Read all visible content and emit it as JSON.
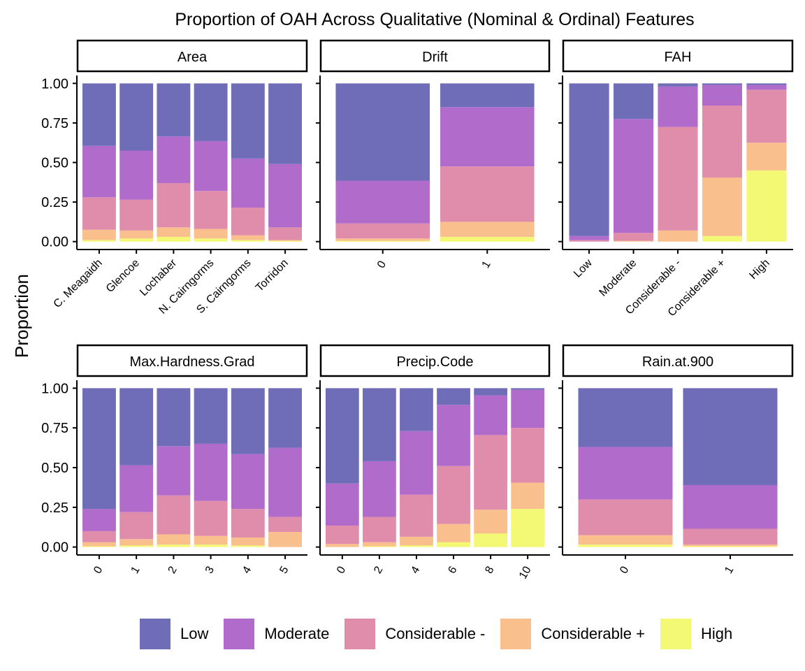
{
  "chart_data": {
    "type": "bar",
    "stacked": true,
    "title": "Proportion of OAH Across Qualitative (Nominal & Ordinal) Features",
    "ylabel": "Proportion",
    "ylim": [
      0,
      1
    ],
    "yticks": [
      "0.00",
      "0.25",
      "0.50",
      "0.75",
      "1.00"
    ],
    "legend_position": "bottom",
    "levels": [
      "Low",
      "Moderate",
      "Considerable -",
      "Considerable +",
      "High"
    ],
    "colors": {
      "Low": "#6f6db7",
      "Moderate": "#b16bcb",
      "Considerable -": "#e08dab",
      "Considerable +": "#f9bf8d",
      "High": "#f3f875"
    },
    "panels": [
      {
        "name": "Area",
        "categories": [
          "C. Meagaidh",
          "Glencoe",
          "Lochaber",
          "N. Cairngorms",
          "S. Cairngorms",
          "Torridon"
        ],
        "tick_rotation": 45,
        "series": [
          {
            "name": "High",
            "values": [
              0.01,
              0.02,
              0.03,
              0.02,
              0.01,
              0.005
            ]
          },
          {
            "name": "Considerable +",
            "values": [
              0.065,
              0.05,
              0.06,
              0.06,
              0.03,
              0.005
            ]
          },
          {
            "name": "Considerable -",
            "values": [
              0.205,
              0.195,
              0.28,
              0.24,
              0.175,
              0.08
            ]
          },
          {
            "name": "Moderate",
            "values": [
              0.325,
              0.31,
              0.295,
              0.315,
              0.31,
              0.4
            ]
          },
          {
            "name": "Low",
            "values": [
              0.395,
              0.425,
              0.335,
              0.365,
              0.475,
              0.51
            ]
          }
        ]
      },
      {
        "name": "Drift",
        "categories": [
          "0",
          "1"
        ],
        "tick_rotation": 60,
        "series": [
          {
            "name": "High",
            "values": [
              0.005,
              0.03
            ]
          },
          {
            "name": "Considerable +",
            "values": [
              0.015,
              0.095
            ]
          },
          {
            "name": "Considerable -",
            "values": [
              0.095,
              0.35
            ]
          },
          {
            "name": "Moderate",
            "values": [
              0.27,
              0.375
            ]
          },
          {
            "name": "Low",
            "values": [
              0.615,
              0.15
            ]
          }
        ]
      },
      {
        "name": "FAH",
        "categories": [
          "Low",
          "Moderate",
          "Considerable -",
          "Considerable +",
          "High"
        ],
        "tick_rotation": 45,
        "series": [
          {
            "name": "High",
            "values": [
              0.0,
              0.0,
              0.0,
              0.035,
              0.45
            ]
          },
          {
            "name": "Considerable +",
            "values": [
              0.0,
              0.005,
              0.07,
              0.37,
              0.175
            ]
          },
          {
            "name": "Considerable -",
            "values": [
              0.01,
              0.05,
              0.655,
              0.455,
              0.335
            ]
          },
          {
            "name": "Moderate",
            "values": [
              0.025,
              0.72,
              0.255,
              0.13,
              0.03
            ]
          },
          {
            "name": "Low",
            "values": [
              0.965,
              0.225,
              0.02,
              0.01,
              0.01
            ]
          }
        ]
      },
      {
        "name": "Max.Hardness.Grad",
        "categories": [
          "0",
          "1",
          "2",
          "3",
          "4",
          "5"
        ],
        "tick_rotation": 60,
        "series": [
          {
            "name": "High",
            "values": [
              0.005,
              0.01,
              0.015,
              0.015,
              0.01,
              0.0
            ]
          },
          {
            "name": "Considerable +",
            "values": [
              0.025,
              0.04,
              0.065,
              0.055,
              0.05,
              0.095
            ]
          },
          {
            "name": "Considerable -",
            "values": [
              0.07,
              0.17,
              0.245,
              0.22,
              0.18,
              0.095
            ]
          },
          {
            "name": "Moderate",
            "values": [
              0.14,
              0.295,
              0.31,
              0.36,
              0.345,
              0.435
            ]
          },
          {
            "name": "Low",
            "values": [
              0.76,
              0.485,
              0.365,
              0.35,
              0.415,
              0.375
            ]
          }
        ]
      },
      {
        "name": "Precip.Code",
        "categories": [
          "0",
          "2",
          "4",
          "6",
          "8",
          "10"
        ],
        "tick_rotation": 60,
        "series": [
          {
            "name": "High",
            "values": [
              0.0,
              0.005,
              0.01,
              0.03,
              0.085,
              0.24
            ]
          },
          {
            "name": "Considerable +",
            "values": [
              0.02,
              0.025,
              0.055,
              0.115,
              0.15,
              0.165
            ]
          },
          {
            "name": "Considerable -",
            "values": [
              0.115,
              0.16,
              0.265,
              0.365,
              0.47,
              0.345
            ]
          },
          {
            "name": "Moderate",
            "values": [
              0.265,
              0.35,
              0.4,
              0.385,
              0.25,
              0.24
            ]
          },
          {
            "name": "Low",
            "values": [
              0.6,
              0.46,
              0.27,
              0.105,
              0.045,
              0.01
            ]
          }
        ]
      },
      {
        "name": "Rain.at.900",
        "categories": [
          "0",
          "1"
        ],
        "tick_rotation": 60,
        "series": [
          {
            "name": "High",
            "values": [
              0.015,
              0.005
            ]
          },
          {
            "name": "Considerable +",
            "values": [
              0.06,
              0.01
            ]
          },
          {
            "name": "Considerable -",
            "values": [
              0.225,
              0.1
            ]
          },
          {
            "name": "Moderate",
            "values": [
              0.33,
              0.275
            ]
          },
          {
            "name": "Low",
            "values": [
              0.37,
              0.61
            ]
          }
        ]
      }
    ]
  }
}
